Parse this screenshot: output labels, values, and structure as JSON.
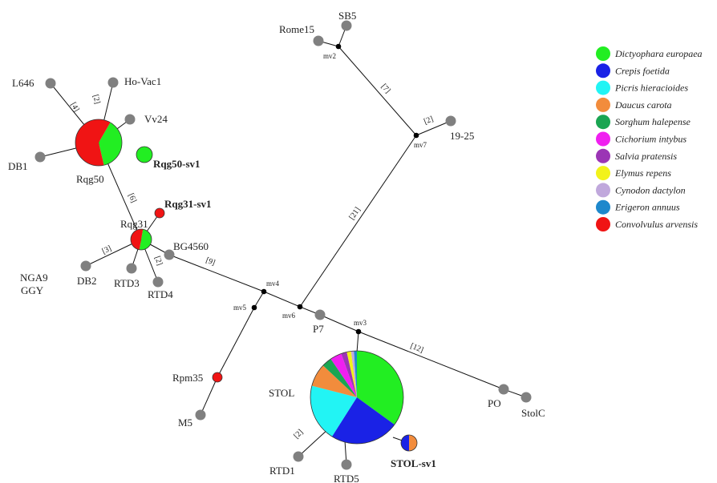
{
  "legend": [
    {
      "name": "Dictyophara europaea",
      "color": "#22ee22"
    },
    {
      "name": "Crepis foetida",
      "color": "#1a22e6"
    },
    {
      "name": "Picris hieracioides",
      "color": "#22f4f4"
    },
    {
      "name": "Daucus carota",
      "color": "#f28c3c"
    },
    {
      "name": "Sorghum halepense",
      "color": "#1aa552"
    },
    {
      "name": "Cichorium intybus",
      "color": "#f01ff0"
    },
    {
      "name": "Salvia pratensis",
      "color": "#9b35b5"
    },
    {
      "name": "Elymus repens",
      "color": "#f2f21a"
    },
    {
      "name": "Cynodon dactylon",
      "color": "#c0a8dc"
    },
    {
      "name": "Erigeron annuus",
      "color": "#1e88cc"
    },
    {
      "name": "Convolvulus arvensis",
      "color": "#f01414"
    }
  ],
  "nodes": {
    "SB5": "SB5",
    "Rome15": "Rome15",
    "n19_25": "19-25",
    "L646": "L646",
    "HoVac1": "Ho-Vac1",
    "Vv24": "Vv24",
    "DB1": "DB1",
    "Rqg50": "Rqg50",
    "Rqg50sv1": "Rqg50-sv1",
    "Rqg31sv1": "Rqg31-sv1",
    "Rqg31": "Rqg31",
    "BG4560": "BG4560",
    "NGA9": "NGA9",
    "GGY": "GGY",
    "DB2": "DB2",
    "RTD3": "RTD3",
    "RTD4": "RTD4",
    "P7": "P7",
    "Rpm35": "Rpm35",
    "M5": "M5",
    "STOL": "STOL",
    "RTD1": "RTD1",
    "RTD5": "RTD5",
    "STOLsv1": "STOL-sv1",
    "PO": "PO",
    "StolC": "StolC"
  },
  "median_vectors": [
    "mv2",
    "mv7",
    "mv4",
    "mv5",
    "mv6",
    "mv3"
  ],
  "mutations": [
    "[4]",
    "[2]",
    "[6]",
    "[3]",
    "[2]",
    "[9]",
    "[7]",
    "[2]",
    "[21]",
    "[12]",
    "[2]"
  ],
  "pies": {
    "Rqg50": [
      {
        "color": "#22ee22",
        "value": 0.38
      },
      {
        "color": "#f01414",
        "value": 0.62
      }
    ],
    "Rqg31": [
      {
        "color": "#22ee22",
        "value": 0.5
      },
      {
        "color": "#f01414",
        "value": 0.5
      }
    ],
    "STOL": [
      {
        "color": "#22ee22",
        "value": 0.35
      },
      {
        "color": "#1a22e6",
        "value": 0.24
      },
      {
        "color": "#22f4f4",
        "value": 0.2
      },
      {
        "color": "#f28c3c",
        "value": 0.08
      },
      {
        "color": "#1aa552",
        "value": 0.035
      },
      {
        "color": "#f01ff0",
        "value": 0.04
      },
      {
        "color": "#9b35b5",
        "value": 0.02
      },
      {
        "color": "#f2f21a",
        "value": 0.015
      },
      {
        "color": "#c0a8dc",
        "value": 0.01
      },
      {
        "color": "#1e88cc",
        "value": 0.01
      }
    ],
    "STOLsv1": [
      {
        "color": "#f28c3c",
        "value": 0.5
      },
      {
        "color": "#1a22e6",
        "value": 0.5
      }
    ]
  },
  "colors": {
    "gray_node": "#808080",
    "mv_node": "#000000",
    "edge": "#111111"
  }
}
